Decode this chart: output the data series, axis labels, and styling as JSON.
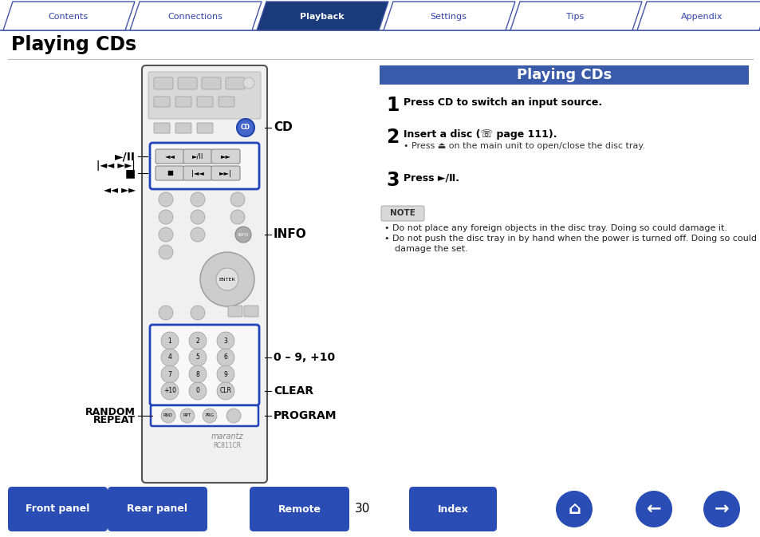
{
  "bg_color": "#ffffff",
  "nav_tabs": [
    "Contents",
    "Connections",
    "Playback",
    "Settings",
    "Tips",
    "Appendix"
  ],
  "nav_active_idx": 2,
  "nav_active_color": "#1a3a7a",
  "nav_inactive_color": "#ffffff",
  "nav_text_active": "#ffffff",
  "nav_text_inactive": "#3344aa",
  "nav_border_color": "#4455aa",
  "page_title": "Playing CDs",
  "section_title": "Playing CDs",
  "section_title_bg": "#3a5baa",
  "section_title_text": "#ffffff",
  "steps": [
    {
      "num": "1",
      "bold": "Press CD to switch an input source."
    },
    {
      "num": "2",
      "bold": "Insert a disc (☏ page 111).",
      "sub": "• Press ⏏ on the main unit to open/close the disc tray."
    },
    {
      "num": "3",
      "bold": "Press ►/Ⅱ."
    }
  ],
  "note_bullets": [
    "• Do not place any foreign objects in the disc tray. Doing so could damage it.",
    "• Do not push the disc tray in by hand when the power is turned off. Doing so could\n  damage the set."
  ],
  "bottom_buttons": [
    "Front panel",
    "Rear panel",
    "Remote"
  ],
  "bottom_page_num": "30",
  "bottom_index": "Index",
  "bottom_btn_color": "#2a4db5",
  "bottom_icon_color": "#2a4db5"
}
